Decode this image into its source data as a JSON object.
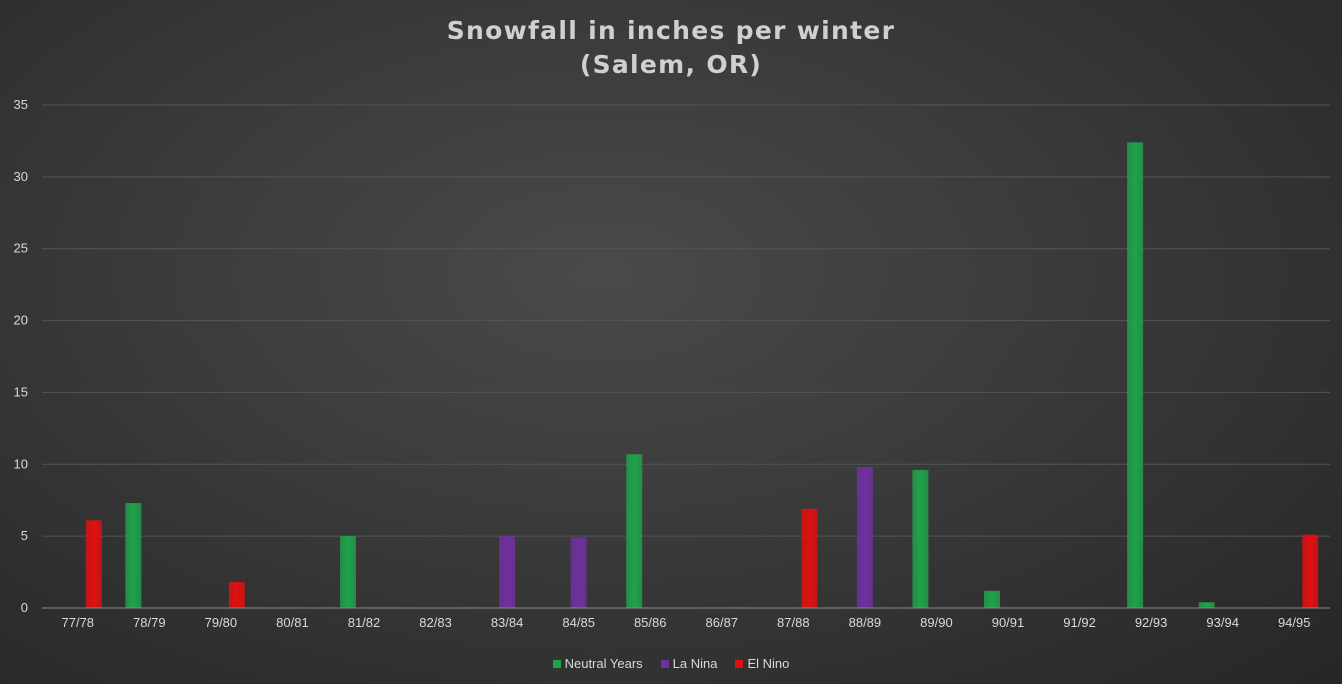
{
  "chart_data": {
    "type": "bar",
    "title": "Snowfall in inches per winter",
    "subtitle": "(Salem, OR)",
    "xlabel": "",
    "ylabel": "",
    "ylim": [
      0,
      35
    ],
    "y_ticks": [
      0,
      5,
      10,
      15,
      20,
      25,
      30,
      35
    ],
    "grid": true,
    "legend_position": "bottom",
    "categories": [
      "77/78",
      "78/79",
      "79/80",
      "80/81",
      "81/82",
      "82/83",
      "83/84",
      "84/85",
      "85/86",
      "86/87",
      "87/88",
      "88/89",
      "89/90",
      "90/91",
      "91/92",
      "92/93",
      "93/94",
      "94/95"
    ],
    "series": [
      {
        "name": "Neutral Years",
        "color": "#1fa34a",
        "values": [
          null,
          7.3,
          null,
          0,
          5.0,
          null,
          null,
          null,
          10.7,
          0,
          null,
          null,
          9.6,
          1.2,
          null,
          32.4,
          0.4,
          null
        ]
      },
      {
        "name": "La Nina",
        "color": "#7030a0",
        "values": [
          null,
          null,
          null,
          null,
          null,
          0,
          5.0,
          4.9,
          null,
          null,
          null,
          9.8,
          null,
          null,
          0,
          null,
          null,
          null
        ]
      },
      {
        "name": "El Nino",
        "color": "#e01010",
        "values": [
          6.1,
          null,
          1.8,
          null,
          null,
          null,
          null,
          null,
          null,
          null,
          6.9,
          null,
          null,
          null,
          null,
          null,
          null,
          5.1
        ]
      }
    ]
  }
}
